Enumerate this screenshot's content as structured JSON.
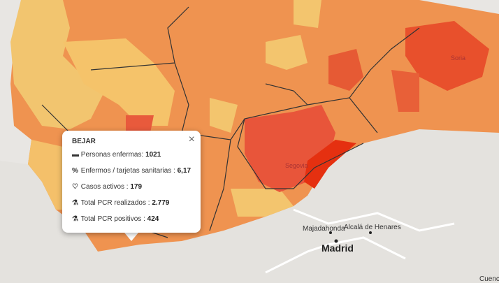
{
  "popup": {
    "title": "BEJAR",
    "rows": [
      {
        "label": "Personas enfermas:",
        "value": "1021"
      },
      {
        "label": "Enfermos / tarjetas sanitarias :",
        "value": "6,17"
      },
      {
        "label": "Casos activos :",
        "value": "179"
      },
      {
        "label": "Total PCR realizados :",
        "value": "2.779"
      },
      {
        "label": "Total PCR positivos :",
        "value": "424"
      }
    ]
  },
  "places": [
    {
      "label": "Soria"
    },
    {
      "label": "Segovia"
    },
    {
      "label": "Majadahonda"
    },
    {
      "label": "Alcalá de Henares"
    },
    {
      "label": "Madrid"
    },
    {
      "label": "Cuenc"
    }
  ]
}
